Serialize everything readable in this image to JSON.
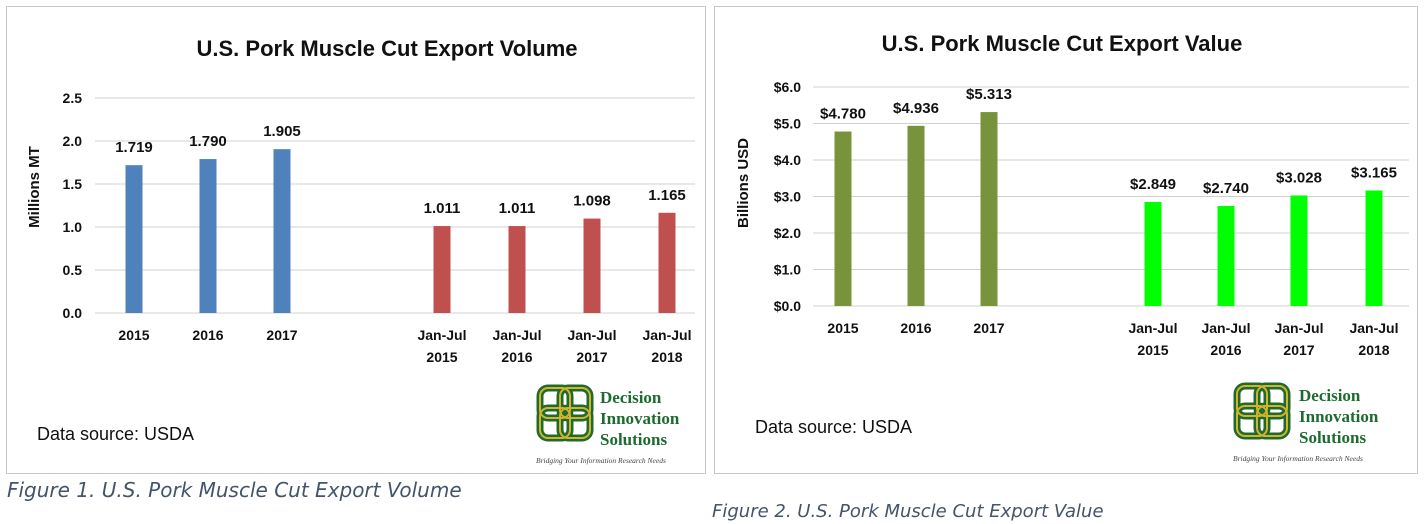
{
  "chart_data": [
    {
      "type": "bar",
      "title": "U.S. Pork Muscle Cut Export Volume",
      "ylabel": "Millions MT",
      "ylim": [
        0,
        2.5
      ],
      "yticks": [
        "0.0",
        "0.5",
        "1.0",
        "1.5",
        "2.0",
        "2.5"
      ],
      "grid": true,
      "categories": [
        [
          "2015"
        ],
        [
          "2016"
        ],
        [
          "2017"
        ],
        [
          "Jan-Jul",
          "2015"
        ],
        [
          "Jan-Jul",
          "2016"
        ],
        [
          "Jan-Jul",
          "2017"
        ],
        [
          "Jan-Jul",
          "2018"
        ]
      ],
      "values": [
        1.719,
        1.79,
        1.905,
        1.011,
        1.011,
        1.098,
        1.165
      ],
      "data_labels": [
        "1.719",
        "1.790",
        "1.905",
        "1.011",
        "1.011",
        "1.098",
        "1.165"
      ],
      "colors": [
        "#4f81bd",
        "#4f81bd",
        "#4f81bd",
        "#c0504d",
        "#c0504d",
        "#c0504d",
        "#c0504d"
      ]
    },
    {
      "type": "bar",
      "title": "U.S. Pork Muscle Cut Export Value",
      "ylabel": "Billions USD",
      "ylim": [
        0,
        6
      ],
      "yticks": [
        "$0.0",
        "$1.0",
        "$2.0",
        "$3.0",
        "$4.0",
        "$5.0",
        "$6.0"
      ],
      "grid": true,
      "categories": [
        [
          "2015"
        ],
        [
          "2016"
        ],
        [
          "2017"
        ],
        [
          "Jan-Jul",
          "2015"
        ],
        [
          "Jan-Jul",
          "2016"
        ],
        [
          "Jan-Jul",
          "2017"
        ],
        [
          "Jan-Jul",
          "2018"
        ]
      ],
      "values": [
        4.78,
        4.936,
        5.313,
        2.849,
        2.74,
        3.028,
        3.165
      ],
      "data_labels": [
        "$4.780",
        "$4.936",
        "$5.313",
        "$2.849",
        "$2.740",
        "$3.028",
        "$3.165"
      ],
      "colors": [
        "#77933c",
        "#77933c",
        "#77933c",
        "#00ff00",
        "#00ff00",
        "#00ff00",
        "#00ff00"
      ]
    }
  ],
  "panels": [
    {
      "source": "Data source: USDA"
    },
    {
      "source": "Data source: USDA"
    }
  ],
  "logo": {
    "icon": "celtic-knot-logo",
    "line1": "Decision",
    "line2": "Innovation",
    "line3": "Solutions",
    "tagline": "Bridging Your Information Research Needs",
    "color_green": "#1e6b30",
    "color_gold": "#d4b22a"
  },
  "captions": {
    "fig1": "Figure 1. U.S. Pork Muscle Cut Export Volume",
    "fig2": "Figure 2. U.S. Pork Muscle Cut Export Value"
  }
}
